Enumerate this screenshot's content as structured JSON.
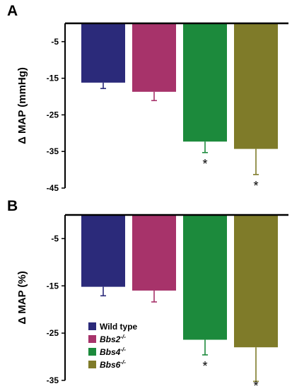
{
  "chart_data": [
    {
      "type": "bar",
      "panel": "A",
      "ylabel": "Δ MAP (mmHg)",
      "ylim": [
        -45,
        0
      ],
      "yticks": [
        -5,
        -15,
        -25,
        -35,
        -45
      ],
      "categories": [
        "Wild type",
        "Bbs2-/-",
        "Bbs4-/-",
        "Bbs6-/-"
      ],
      "values": [
        -16.2,
        -18.7,
        -32.3,
        -34.3
      ],
      "errors": [
        1.6,
        2.4,
        3.0,
        7.0
      ],
      "significant": [
        false,
        false,
        true,
        true
      ],
      "significance_marker": "*",
      "colors": [
        "#2b2a7a",
        "#a7336a",
        "#1c8a3c",
        "#7f7b29"
      ]
    },
    {
      "type": "bar",
      "panel": "B",
      "ylabel": "Δ MAP (%)",
      "ylim": [
        -35,
        0
      ],
      "yticks": [
        -5,
        -15,
        -25,
        -35
      ],
      "categories": [
        "Wild type",
        "Bbs2-/-",
        "Bbs4-/-",
        "Bbs6-/-"
      ],
      "values": [
        -15.2,
        -16.0,
        -26.4,
        -28.0
      ],
      "errors": [
        1.9,
        2.4,
        3.2,
        7.2
      ],
      "significant": [
        false,
        false,
        true,
        true
      ],
      "significance_marker": "*",
      "colors": [
        "#2b2a7a",
        "#a7336a",
        "#1c8a3c",
        "#7f7b29"
      ]
    }
  ],
  "legend": {
    "placement": "bottom-left of panel B",
    "items": [
      {
        "name": "Wild type",
        "base": "Wild type",
        "sup": "",
        "italic": false,
        "color": "#2b2a7a"
      },
      {
        "name": "Bbs2-/-",
        "base": "Bbs2",
        "sup": "-/-",
        "italic": true,
        "color": "#a7336a"
      },
      {
        "name": "Bbs4-/-",
        "base": "Bbs4",
        "sup": "-/-",
        "italic": true,
        "color": "#1c8a3c"
      },
      {
        "name": "Bbs6-/-",
        "base": "Bbs6",
        "sup": "-/-",
        "italic": true,
        "color": "#7f7b29"
      }
    ]
  }
}
